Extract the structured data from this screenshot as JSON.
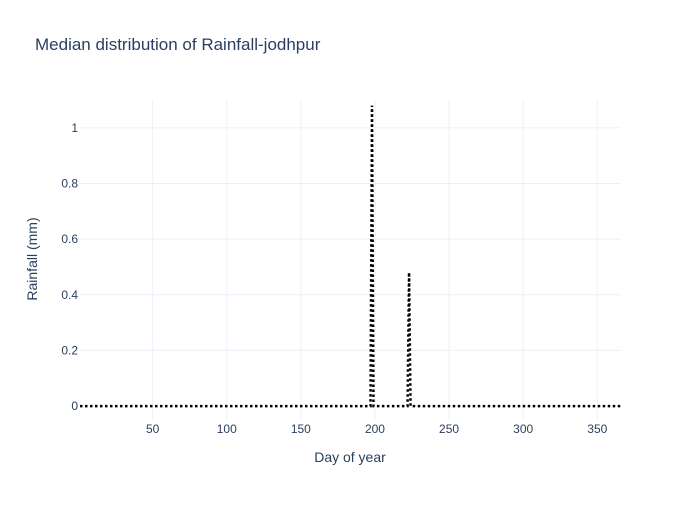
{
  "chart_data": {
    "type": "line",
    "title": "Median distribution of Rainfall-jodhpur",
    "xlabel": "Day of year",
    "ylabel": "Rainfall (mm)",
    "xlim": [
      1,
      366
    ],
    "ylim": [
      -0.05,
      1.1
    ],
    "x_ticks": [
      50,
      100,
      150,
      200,
      250,
      300,
      350
    ],
    "y_ticks": [
      0,
      0.2,
      0.4,
      0.6,
      0.8,
      1
    ],
    "y_tick_labels": [
      "0",
      "0.2",
      "0.4",
      "0.6",
      "0.8",
      "1"
    ],
    "grid": true,
    "series": [
      {
        "line_style": "dotted",
        "color": "#000000",
        "x": [
          1,
          197,
          198,
          199,
          200,
          222,
          223,
          224,
          225,
          366
        ],
        "y": [
          0,
          0,
          1.08,
          0,
          0,
          0,
          0.48,
          0,
          0,
          0
        ]
      }
    ]
  },
  "colors": {
    "title": "#2a3f5f",
    "text": "#2a3f5f",
    "grid": "#ebf0f8",
    "zeroline": "#444444",
    "line": "#000000"
  }
}
